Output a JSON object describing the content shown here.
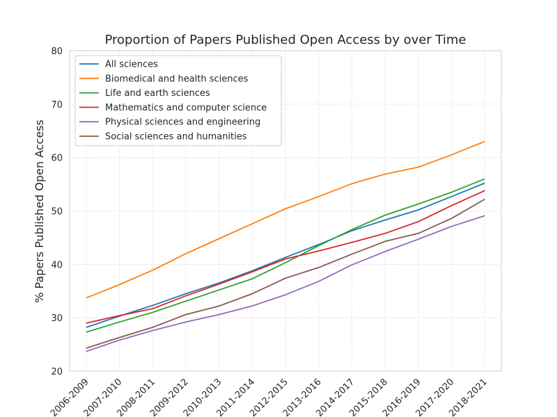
{
  "chart_data": {
    "type": "line",
    "title": "Proportion of Papers Published Open Access by over Time",
    "xlabel": "",
    "ylabel": "% Papers Published Open Access",
    "ylim": [
      20,
      80
    ],
    "yticks": [
      20,
      30,
      40,
      50,
      60,
      70,
      80
    ],
    "grid": true,
    "legend_position": "top-left",
    "categories": [
      "2006-2009",
      "2007-2010",
      "2008-2011",
      "2009-2012",
      "2010-2013",
      "2011-2014",
      "2012-2015",
      "2013-2016",
      "2014-2017",
      "2015-2018",
      "2016-2019",
      "2017-2020",
      "2018-2021"
    ],
    "series": [
      {
        "name": "All sciences",
        "color": "#1f77b4",
        "values": [
          28.2,
          30.3,
          32.3,
          34.5,
          36.5,
          38.8,
          41.3,
          43.7,
          46.3,
          48.3,
          50.2,
          52.7,
          55.2
        ]
      },
      {
        "name": "Biomedical and health sciences",
        "color": "#ff7f0e",
        "values": [
          33.7,
          36.2,
          38.9,
          42.0,
          44.8,
          47.6,
          50.4,
          52.7,
          55.1,
          56.9,
          58.2,
          60.5,
          63.0
        ]
      },
      {
        "name": "Life and earth sciences",
        "color": "#2ca02c",
        "values": [
          27.3,
          29.2,
          31.0,
          33.1,
          35.2,
          37.3,
          40.3,
          43.5,
          46.5,
          49.2,
          51.3,
          53.5,
          56.0
        ]
      },
      {
        "name": "Mathematics and computer science",
        "color": "#d62728",
        "values": [
          29.0,
          30.4,
          31.7,
          34.1,
          36.3,
          38.6,
          41.0,
          42.5,
          44.1,
          45.8,
          48.0,
          51.0,
          53.8
        ]
      },
      {
        "name": "Physical sciences and engineering",
        "color": "#9467bd",
        "values": [
          23.7,
          25.8,
          27.6,
          29.2,
          30.6,
          32.2,
          34.3,
          36.8,
          39.9,
          42.4,
          44.7,
          47.1,
          49.1
        ]
      },
      {
        "name": "Social sciences and humanities",
        "color": "#8c564b",
        "values": [
          24.3,
          26.3,
          28.2,
          30.6,
          32.2,
          34.5,
          37.4,
          39.4,
          41.9,
          44.3,
          45.8,
          48.6,
          52.2
        ]
      }
    ]
  }
}
